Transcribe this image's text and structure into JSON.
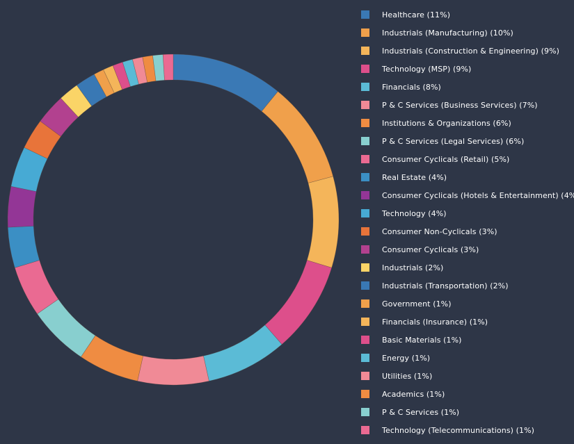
{
  "chart_data": {
    "type": "pie",
    "variant": "donut",
    "title": "",
    "legend_position": "right",
    "start_angle": "12 o'clock, clockwise",
    "slices": [
      {
        "label": "Healthcare",
        "value": 11,
        "color": "#3a79b5"
      },
      {
        "label": "Industrials (Manufacturing)",
        "value": 10,
        "color": "#f0a04b"
      },
      {
        "label": "Industrials (Construction & Engineering)",
        "value": 9,
        "color": "#f4b55a"
      },
      {
        "label": "Technology (MSP)",
        "value": 9,
        "color": "#dd4f8b"
      },
      {
        "label": "Financials",
        "value": 8,
        "color": "#5bbbd6"
      },
      {
        "label": "P & C Services (Business Services)",
        "value": 7,
        "color": "#f08a96"
      },
      {
        "label": "Institutions & Organizations",
        "value": 6,
        "color": "#ef8c42"
      },
      {
        "label": "P & C Services (Legal Services)",
        "value": 6,
        "color": "#88cfcf"
      },
      {
        "label": "Consumer Cyclicals (Retail)",
        "value": 5,
        "color": "#ea6a92"
      },
      {
        "label": "Real Estate",
        "value": 4,
        "color": "#3b8fc4"
      },
      {
        "label": "Consumer Cyclicals (Hotels & Entertainment)",
        "value": 4,
        "color": "#933696"
      },
      {
        "label": "Technology",
        "value": 4,
        "color": "#47aad4"
      },
      {
        "label": "Consumer Non-Cyclicals",
        "value": 3,
        "color": "#e8743a"
      },
      {
        "label": "Consumer Cyclicals",
        "value": 3,
        "color": "#b2418f"
      },
      {
        "label": "Industrials",
        "value": 2,
        "color": "#fad467"
      },
      {
        "label": "Industrials (Transportation)",
        "value": 2,
        "color": "#3978b4"
      },
      {
        "label": "Government",
        "value": 1,
        "color": "#f0a04b"
      },
      {
        "label": "Financials (Insurance)",
        "value": 1,
        "color": "#f4b55a"
      },
      {
        "label": "Basic Materials",
        "value": 1,
        "color": "#dd4f8b"
      },
      {
        "label": "Energy",
        "value": 1,
        "color": "#5bbbd6"
      },
      {
        "label": "Utilities",
        "value": 1,
        "color": "#f08a96"
      },
      {
        "label": "Academics",
        "value": 1,
        "color": "#ef8c42"
      },
      {
        "label": "P & C Services",
        "value": 1,
        "color": "#88cfcf"
      },
      {
        "label": "Technology (Telecommunications)",
        "value": 1,
        "color": "#ea6a92"
      }
    ]
  },
  "background_color": "#2e3647"
}
